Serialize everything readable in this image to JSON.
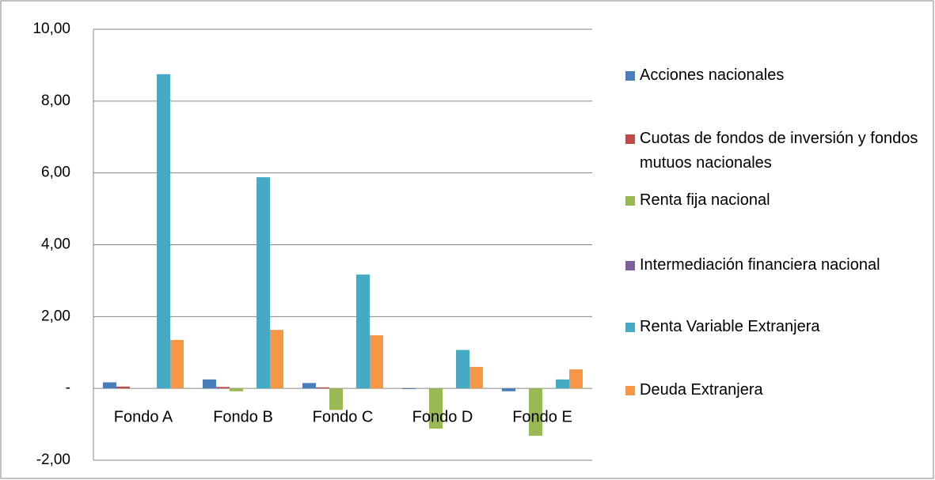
{
  "chart_data": {
    "type": "bar",
    "categories": [
      "Fondo A",
      "Fondo B",
      "Fondo C",
      "Fondo D",
      "Fondo E"
    ],
    "series": [
      {
        "name": "Acciones nacionales",
        "color": "#4a7ebb",
        "values": [
          0.17,
          0.25,
          0.15,
          -0.02,
          -0.08
        ]
      },
      {
        "name": "Cuotas de fondos de inversión y fondos mutuos nacionales",
        "color": "#be4b48",
        "values": [
          0.05,
          0.04,
          0.03,
          0,
          0
        ]
      },
      {
        "name": "Renta fija nacional",
        "color": "#98b954",
        "values": [
          0,
          -0.08,
          -0.6,
          -1.12,
          -1.32
        ]
      },
      {
        "name": "Intermediación financiera nacional",
        "color": "#7d5fa0",
        "values": [
          0,
          0,
          0,
          0,
          0
        ]
      },
      {
        "name": "Renta Variable Extranjera",
        "color": "#46aac5",
        "values": [
          8.75,
          5.88,
          3.17,
          1.07,
          0.25
        ]
      },
      {
        "name": "Deuda Extranjera",
        "color": "#f79646",
        "values": [
          1.35,
          1.63,
          1.48,
          0.6,
          0.53
        ]
      }
    ],
    "ylim": [
      -2,
      10
    ],
    "yticks": [
      {
        "value": -2,
        "label": "-2,00"
      },
      {
        "value": 0,
        "label": "-"
      },
      {
        "value": 2,
        "label": "2,00"
      },
      {
        "value": 4,
        "label": "4,00"
      },
      {
        "value": 6,
        "label": "6,00"
      },
      {
        "value": 8,
        "label": "8,00"
      },
      {
        "value": 10,
        "label": "10,00"
      }
    ],
    "grid": true,
    "legend": "right"
  }
}
